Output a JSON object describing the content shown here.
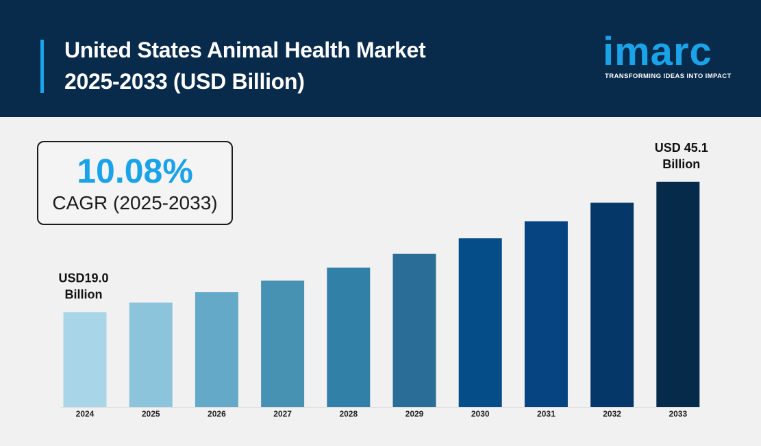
{
  "header": {
    "title_line1": "United States Animal Health Market",
    "title_line2": "2025-2033 (USD Billion)"
  },
  "logo": {
    "word": "imarc",
    "tagline": "TRANSFORMING IDEAS INTO IMPACT"
  },
  "cagr": {
    "value": "10.08%",
    "label": "CAGR (2025-2033)"
  },
  "colors": {
    "header_bg": "#082a4b",
    "accent": "#1aa3e8",
    "bars": [
      "#a8d6e8",
      "#8cc4dc",
      "#64a9c8",
      "#4791b2",
      "#3180a7",
      "#2a6d97",
      "#044d88",
      "#054480",
      "#053868",
      "#062a4a"
    ]
  },
  "chart_data": {
    "type": "bar",
    "title": "United States Animal Health Market 2025-2033 (USD Billion)",
    "categories": [
      "2024",
      "2025",
      "2026",
      "2027",
      "2028",
      "2029",
      "2030",
      "2031",
      "2032",
      "2033"
    ],
    "values": [
      19.0,
      20.9,
      23.0,
      25.3,
      27.9,
      30.7,
      33.8,
      37.2,
      40.9,
      45.1
    ],
    "value_labels": [
      {
        "index": 0,
        "lines": [
          "USD19.0",
          "Billion"
        ]
      },
      {
        "index": 9,
        "lines": [
          "USD 45.1",
          "Billion"
        ]
      }
    ],
    "xlabel": "",
    "ylabel": "",
    "grid": false,
    "legend": "none"
  }
}
